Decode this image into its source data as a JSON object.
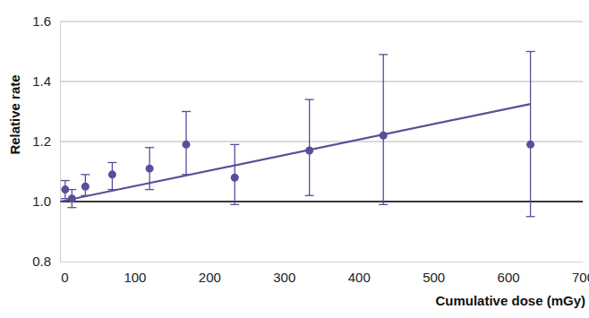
{
  "chart_data": {
    "type": "scatter",
    "x_label": "Cumulative dose (mGy)",
    "y_label": "Relative rate",
    "xlim": [
      0,
      700
    ],
    "xticks": [
      0,
      100,
      200,
      300,
      400,
      500,
      600,
      700
    ],
    "ylim": [
      0.8,
      1.6
    ],
    "yticks": [
      {
        "value": 0.8,
        "label": "0.8"
      },
      {
        "value": 1.0,
        "label": "1.0"
      },
      {
        "value": 1.2,
        "label": "1.2"
      },
      {
        "value": 1.4,
        "label": "1.4"
      },
      {
        "value": 1.6,
        "label": "1.6"
      }
    ],
    "grid": true,
    "baseline": 1.0,
    "series": [
      {
        "type": "scatter",
        "marker": "circle",
        "color": "#5a4e9a",
        "x": [
          7,
          16,
          34,
          70,
          120,
          169,
          234,
          334,
          433,
          630
        ],
        "values": [
          1.04,
          1.01,
          1.05,
          1.09,
          1.11,
          1.19,
          1.08,
          1.17,
          1.22,
          1.19
        ],
        "lower": [
          1.01,
          0.98,
          1.02,
          1.04,
          1.04,
          1.09,
          0.99,
          1.02,
          0.99,
          0.95
        ],
        "upper": [
          1.07,
          1.04,
          1.09,
          1.13,
          1.18,
          1.3,
          1.19,
          1.34,
          1.49,
          1.5
        ]
      },
      {
        "type": "line",
        "line_style": "solid",
        "color": "#5a4e9a",
        "x": [
          0,
          630
        ],
        "values": [
          1.0,
          1.325
        ]
      }
    ]
  }
}
